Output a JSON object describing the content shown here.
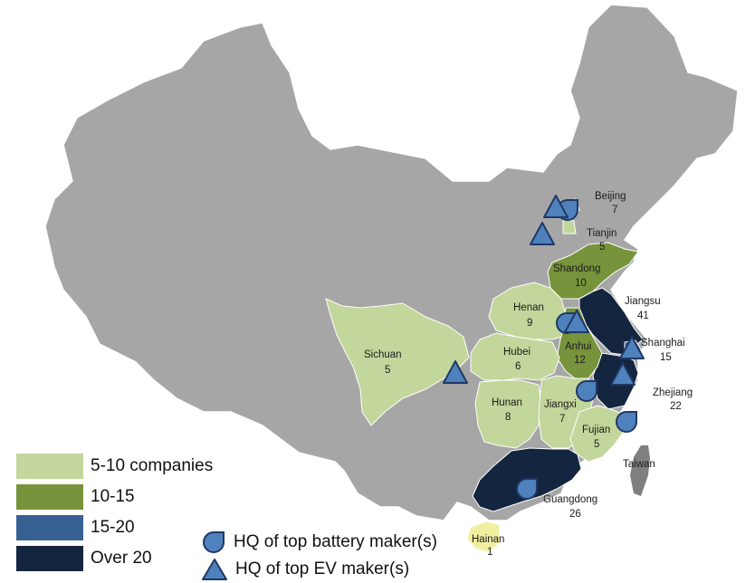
{
  "colors": {
    "other": "#a6a6a6",
    "border": "#ffffff",
    "tier_5_10": "#c3d69b",
    "tier_10_15": "#77933c",
    "tier_15_20": "#376092",
    "tier_over_20": "#14253f",
    "hainan": "#f0f0a0",
    "marker_fill": "#4f81bd",
    "marker_stroke": "#1f3864"
  },
  "provinces": [
    {
      "id": "beijing",
      "name": "Beijing",
      "count": "7",
      "tier": "tier_5_10"
    },
    {
      "id": "tianjin",
      "name": "Tianjin",
      "count": "5",
      "tier": "tier_5_10"
    },
    {
      "id": "shandong",
      "name": "Shandong",
      "count": "10",
      "tier": "tier_10_15"
    },
    {
      "id": "jiangsu",
      "name": "Jiangsu",
      "count": "41",
      "tier": "tier_over_20"
    },
    {
      "id": "henan",
      "name": "Henan",
      "count": "9",
      "tier": "tier_5_10"
    },
    {
      "id": "shanghai",
      "name": "Shanghai",
      "count": "15",
      "tier": "tier_15_20"
    },
    {
      "id": "sichuan",
      "name": "Sichuan",
      "count": "5",
      "tier": "tier_5_10"
    },
    {
      "id": "hubei",
      "name": "Hubei",
      "count": "6",
      "tier": "tier_5_10"
    },
    {
      "id": "anhui",
      "name": "Anhui",
      "count": "12",
      "tier": "tier_10_15"
    },
    {
      "id": "zhejiang",
      "name": "Zhejiang",
      "count": "22",
      "tier": "tier_over_20"
    },
    {
      "id": "hunan",
      "name": "Hunan",
      "count": "8",
      "tier": "tier_5_10"
    },
    {
      "id": "jiangxi",
      "name": "Jiangxi",
      "count": "7",
      "tier": "tier_5_10"
    },
    {
      "id": "fujian",
      "name": "Fujian",
      "count": "5",
      "tier": "tier_5_10"
    },
    {
      "id": "guangdong",
      "name": "Guangdong",
      "count": "26",
      "tier": "tier_over_20"
    },
    {
      "id": "hainan",
      "name": "Hainan",
      "count": "1",
      "tier": "hainan"
    }
  ],
  "taiwan_label": "Taiwan",
  "legend": [
    {
      "label": "5-10 companies",
      "color_key": "tier_5_10"
    },
    {
      "label": "10-15",
      "color_key": "tier_10_15"
    },
    {
      "label": "15-20",
      "color_key": "tier_15_20"
    },
    {
      "label": "Over 20",
      "color_key": "tier_over_20"
    }
  ],
  "symbol_legend": {
    "battery": "HQ of top battery maker(s)",
    "ev": "HQ of top EV maker(s)"
  }
}
